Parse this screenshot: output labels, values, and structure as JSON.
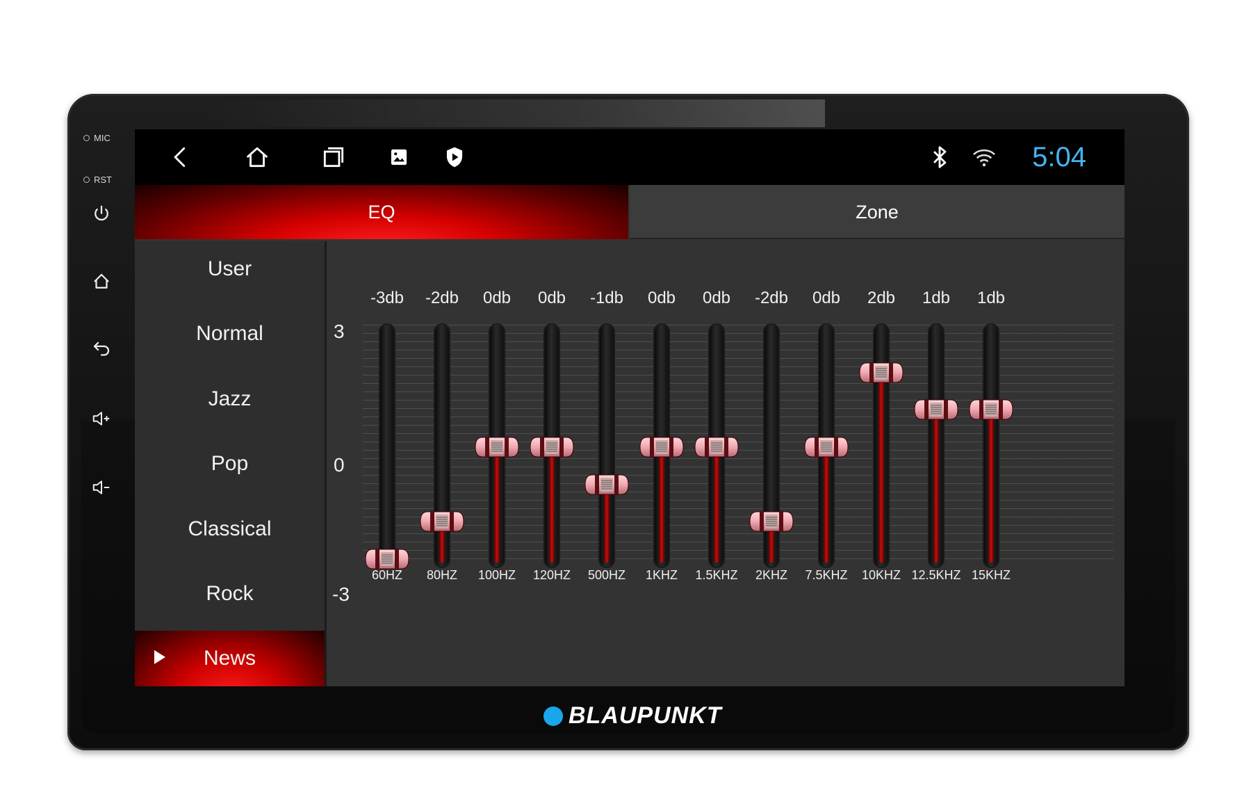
{
  "side_panel": {
    "mic_label": "MIC",
    "rst_label": "RST",
    "buttons": [
      "power-icon",
      "home-icon",
      "back-icon",
      "volume-up-icon",
      "volume-down-icon"
    ]
  },
  "status_bar": {
    "nav_icons": [
      "back-icon",
      "home-icon",
      "recents-icon",
      "gallery-icon",
      "shield-icon"
    ],
    "status_icons": [
      "bluetooth-icon",
      "wifi-icon"
    ],
    "clock": "5:04",
    "clock_color": "#45b4f0"
  },
  "tabs": [
    {
      "label": "EQ",
      "active": true
    },
    {
      "label": "Zone",
      "active": false
    }
  ],
  "presets": [
    {
      "label": "User",
      "active": false
    },
    {
      "label": "Normal",
      "active": false
    },
    {
      "label": "Jazz",
      "active": false
    },
    {
      "label": "Pop",
      "active": false
    },
    {
      "label": "Classical",
      "active": false
    },
    {
      "label": "Rock",
      "active": false
    },
    {
      "label": "News",
      "active": true
    }
  ],
  "eq": {
    "scale_max": "3",
    "scale_mid": "0",
    "scale_min": "-3",
    "range": [
      -3,
      3
    ],
    "bands": [
      {
        "freq": "60HZ",
        "db_label": "-3db",
        "value": -3
      },
      {
        "freq": "80HZ",
        "db_label": "-2db",
        "value": -2
      },
      {
        "freq": "100HZ",
        "db_label": "0db",
        "value": 0
      },
      {
        "freq": "120HZ",
        "db_label": "0db",
        "value": 0
      },
      {
        "freq": "500HZ",
        "db_label": "-1db",
        "value": -1
      },
      {
        "freq": "1KHZ",
        "db_label": "0db",
        "value": 0
      },
      {
        "freq": "1.5KHZ",
        "db_label": "0db",
        "value": 0
      },
      {
        "freq": "2KHZ",
        "db_label": "-2db",
        "value": -2
      },
      {
        "freq": "7.5KHZ",
        "db_label": "0db",
        "value": 0
      },
      {
        "freq": "10KHZ",
        "db_label": "2db",
        "value": 2
      },
      {
        "freq": "12.5KHZ",
        "db_label": "1db",
        "value": 1
      },
      {
        "freq": "15KHZ",
        "db_label": "1db",
        "value": 1
      }
    ]
  },
  "brand": {
    "name": "BLAUPUNKT",
    "dot_color": "#1aa6ea"
  },
  "colors": {
    "accent_red": "#d40000",
    "screen_bg": "#333333"
  }
}
